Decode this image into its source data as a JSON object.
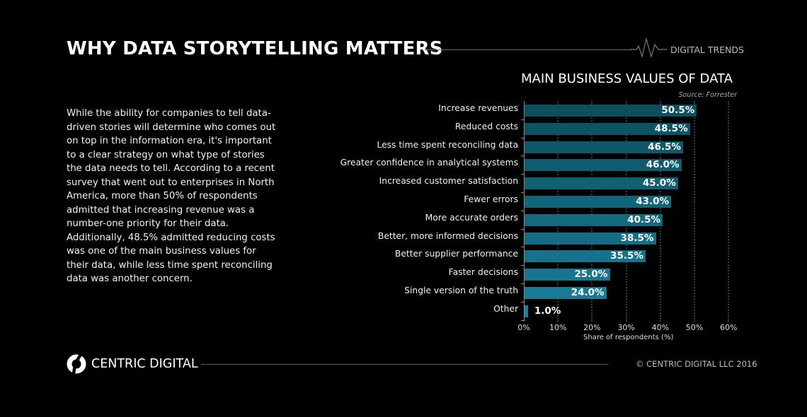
{
  "header": {
    "title": "WHY DATA STORYTELLING MATTERS",
    "brand_tag": "DIGITAL TRENDS",
    "pulse_icon": "pulse-line-icon"
  },
  "intro": {
    "paragraph": "While the ability for companies to tell data-driven stories will determine who comes out on top in the information era, it's important to a clear strategy on what type of stories the data needs to tell. According to a recent survey that went out to enterprises in North America, more than 50% of respondents admitted that increasing revenue was a number-one priority for their data. Additionally, 48.5% admitted reducing costs was one of the main business values for their data, while less time spent reconciling data was another concern."
  },
  "chart": {
    "title": "MAIN BUSINESS VALUES OF DATA",
    "source": "Source: Forrester",
    "xlabel": "Share of respondents (%)",
    "x_ticks": [
      "0%",
      "10%",
      "20%",
      "30%",
      "40%",
      "50%",
      "60%"
    ],
    "bar_color_top": "#0b4f5e",
    "bar_color_bottom": "#1b7e9b"
  },
  "chart_data": {
    "type": "bar",
    "orientation": "horizontal",
    "title": "MAIN BUSINESS VALUES OF DATA",
    "subtitle": "Source: Forrester",
    "xlabel": "Share of respondents (%)",
    "ylabel": "",
    "xlim": [
      0,
      60
    ],
    "grid": "vertical dotted",
    "categories": [
      "Increase revenues",
      "Reduced costs",
      "Less time spent reconciling data",
      "Greater confidence in analytical systems",
      "Increased customer satisfaction",
      "Fewer errors",
      "More accurate orders",
      "Better, more informed decisions",
      "Better supplier performance",
      "Faster decisions",
      "Single version of the truth",
      "Other"
    ],
    "values": [
      50.5,
      48.5,
      46.5,
      46.0,
      45.0,
      43.0,
      40.5,
      38.5,
      35.5,
      25.0,
      24.0,
      1.0
    ],
    "value_labels": [
      "50.5%",
      "48.5%",
      "46.5%",
      "46.0%",
      "45.0%",
      "43.0%",
      "40.5%",
      "38.5%",
      "35.5%",
      "25.0%",
      "24.0%",
      "1.0%"
    ]
  },
  "footer": {
    "logo_name": "CENTRIC DIGITAL",
    "copyright": "© CENTRIC DIGITAL LLC 2016"
  }
}
